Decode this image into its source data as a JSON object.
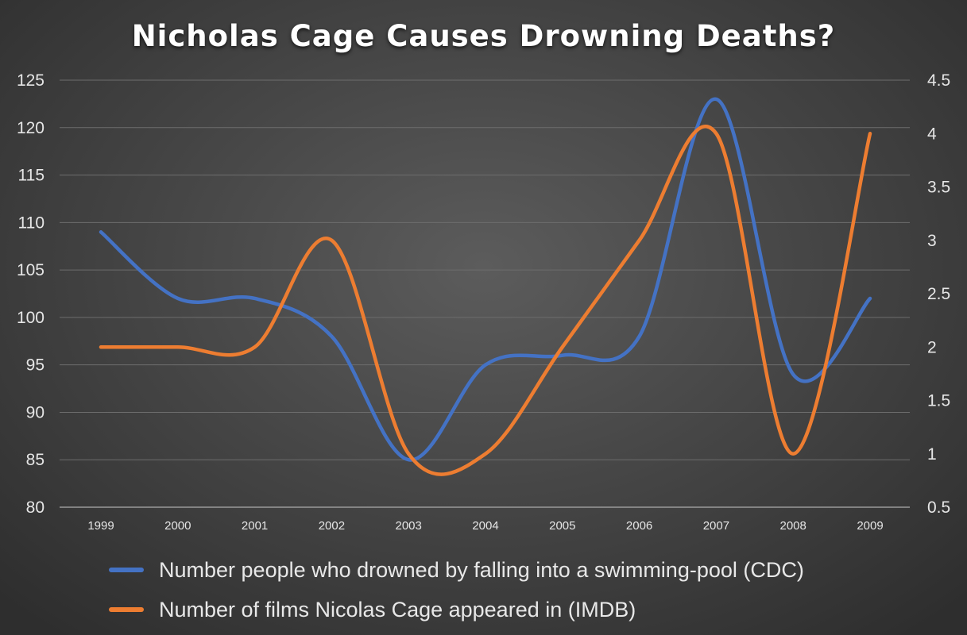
{
  "chart_data": {
    "type": "line",
    "title": "Nicholas Cage Causes Drowning Deaths?",
    "categories": [
      "1999",
      "2000",
      "2001",
      "2002",
      "2003",
      "2004",
      "2005",
      "2006",
      "2007",
      "2008",
      "2009"
    ],
    "y_left": {
      "range": [
        80,
        125
      ],
      "ticks": [
        80,
        85,
        90,
        95,
        100,
        105,
        110,
        115,
        120,
        125
      ]
    },
    "y_right": {
      "range": [
        0.5,
        4.5
      ],
      "ticks": [
        "0.5",
        "1",
        "1.5",
        "2",
        "2.5",
        "3",
        "3.5",
        "4",
        "4.5"
      ]
    },
    "grid": true,
    "legend_position": "bottom-left",
    "series": [
      {
        "name": "Number people who drowned by falling into a swimming-pool (CDC)",
        "axis": "left",
        "color": "#4472c4",
        "values": [
          109,
          102,
          102,
          98,
          85,
          95,
          96,
          98,
          123,
          94,
          102
        ]
      },
      {
        "name": "Number of films Nicolas Cage appeared in (IMDB)",
        "axis": "right",
        "color": "#ed7d31",
        "values": [
          2,
          2,
          2,
          3,
          1,
          1,
          2,
          3,
          4,
          1,
          4
        ]
      }
    ]
  }
}
